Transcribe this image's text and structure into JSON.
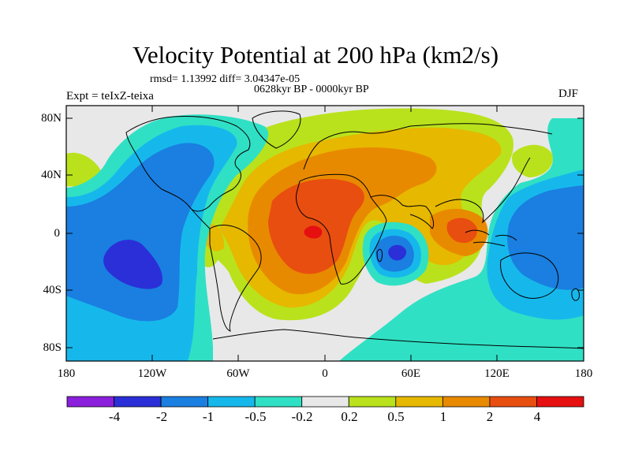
{
  "title": "Velocity Potential at 200 hPa (km2/s)",
  "stats_line": "rmsd= 1.13992  diff= 3.04347e-05",
  "period_line": "0628kyr BP - 0000kyr BP",
  "left_label": "Expt = teIxZ-teixa",
  "right_label": "DJF",
  "y_ticks": [
    "80N",
    "40N",
    "0",
    "40S",
    "80S"
  ],
  "x_ticks": [
    "180",
    "120W",
    "60W",
    "0",
    "60E",
    "120E",
    "180"
  ],
  "colorbar": {
    "colors": [
      "#8b1fdc",
      "#2a2fd8",
      "#1a7fe0",
      "#16b8ec",
      "#30e0c4",
      "#e8e8e8",
      "#b9e21c",
      "#e6b800",
      "#e88a00",
      "#e84e10",
      "#e61010"
    ],
    "labels": [
      "-4",
      "-2",
      "-1",
      "-0.5",
      "-0.2",
      "0.2",
      "0.5",
      "1",
      "2",
      "4"
    ]
  },
  "field": {
    "negative_centers": [
      {
        "name": "east-pacific-low",
        "lon": -140,
        "lat": -22
      },
      {
        "name": "east-africa-low",
        "lon": 52,
        "lat": -12
      },
      {
        "name": "west-pacific-low",
        "lon": 150,
        "lat": 0
      }
    ],
    "positive_centers": [
      {
        "name": "atlantic-high",
        "lon": -5,
        "lat": 2
      },
      {
        "name": "maritime-continent-high",
        "lon": 100,
        "lat": 0
      }
    ]
  }
}
